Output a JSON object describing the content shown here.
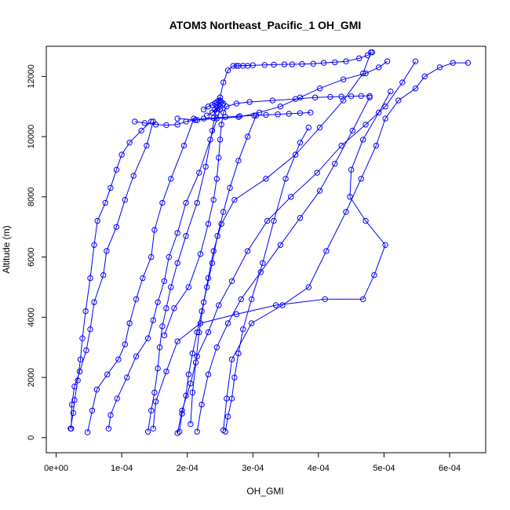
{
  "chart_data": {
    "type": "line",
    "title": "ATOM3 Northeast_Pacific_1 OH_GMI",
    "xlabel": "OH_GMI",
    "ylabel": "Altitude (m)",
    "xlim": [
      -1.5e-05,
      0.000655
    ],
    "ylim": [
      -500,
      13000
    ],
    "x_ticks": [
      0,
      0.0001,
      0.0002,
      0.0003,
      0.0004,
      0.0005,
      0.0006
    ],
    "x_tick_labels": [
      "0e+00",
      "1e-04",
      "2e-04",
      "3e-04",
      "4e-04",
      "5e-04",
      "6e-04"
    ],
    "y_ticks": [
      0,
      2000,
      4000,
      6000,
      8000,
      10000,
      12000
    ],
    "y_tick_labels": [
      "0",
      "2000",
      "4000",
      "6000",
      "8000",
      "10000",
      "12000"
    ],
    "grid": false,
    "legend": "none",
    "color": "#0000ff",
    "marker": "open-circle",
    "series": [
      {
        "x": [
          2.2e-05,
          2.6e-05,
          2.8e-05,
          3.3e-05,
          3.7e-05,
          4e-05,
          4.5e-05,
          5.2e-05,
          5.8e-05,
          6.3e-05,
          7.5e-05,
          8.3e-05,
          9.2e-05,
          0.0001,
          0.000112,
          0.00013,
          0.000145
        ],
        "y": [
          300,
          820,
          1250,
          1900,
          2600,
          3300,
          4200,
          5300,
          6400,
          7200,
          7800,
          8300,
          8900,
          9400,
          9800,
          10200,
          10500
        ]
      },
      {
        "x": [
          2.3e-05,
          2.4e-05,
          2.8e-05,
          3.6e-05,
          4.6e-05,
          5.2e-05,
          5.8e-05,
          7.2e-05,
          7.7e-05,
          9.2e-05,
          0.000105,
          0.000118,
          0.000138,
          0.000148
        ],
        "y": [
          300,
          1100,
          1700,
          2200,
          2900,
          3600,
          4500,
          5400,
          6200,
          7000,
          7900,
          8700,
          9700,
          10500
        ]
      },
      {
        "x": [
          4.8e-05,
          5.5e-05,
          6.2e-05,
          7.8e-05,
          9.5e-05,
          0.000105,
          0.000112,
          0.000122,
          0.000132,
          0.000145,
          0.00015,
          0.000162,
          0.000175,
          0.000195,
          0.00021
        ],
        "y": [
          180,
          900,
          1600,
          2100,
          2600,
          3100,
          3800,
          4600,
          5300,
          6000,
          6900,
          7800,
          8600,
          9700,
          10600
        ]
      },
      {
        "x": [
          8e-05,
          8.3e-05,
          9.3e-05,
          0.000108,
          0.000122,
          0.00014,
          0.000148,
          0.000155,
          0.000165,
          0.000172,
          0.000185,
          0.000198,
          0.000218,
          0.000235,
          0.00025
        ],
        "y": [
          300,
          750,
          1300,
          2000,
          2700,
          3300,
          3900,
          4500,
          5200,
          6000,
          6800,
          7800,
          8800,
          9900,
          10900
        ]
      },
      {
        "x": [
          0.00014,
          0.000145,
          0.00015,
          0.000155,
          0.000158,
          0.000162,
          0.000168,
          0.000175,
          0.000185,
          0.000198,
          0.000215,
          0.000228,
          0.000238,
          0.000245
        ],
        "y": [
          200,
          900,
          1500,
          2300,
          3000,
          3700,
          4300,
          5000,
          5800,
          6700,
          7800,
          9000,
          10200,
          11000
        ]
      },
      {
        "x": [
          0.000188,
          0.000192,
          0.000198,
          0.000202,
          0.000208,
          0.000215,
          0.000222,
          0.00023,
          0.000238,
          0.000246,
          0.000255,
          0.000265,
          0.000278,
          0.000292,
          0.000305
        ],
        "y": [
          200,
          800,
          1400,
          2100,
          2800,
          3500,
          4200,
          5000,
          5800,
          6700,
          7500,
          8300,
          9200,
          10000,
          10700
        ]
      },
      {
        "x": [
          0.000258,
          0.000262,
          0.000268,
          0.000272,
          0.000278,
          0.000285,
          0.000298,
          0.000315,
          0.000332,
          0.00035,
          0.000372,
          0.000385
        ],
        "y": [
          200,
          700,
          1300,
          2000,
          2800,
          3600,
          4600,
          5800,
          7200,
          8600,
          9800,
          10300
        ]
      },
      {
        "x": [
          0.000255,
          0.00026,
          0.000268,
          0.000298,
          0.000345,
          0.000385,
          0.000412,
          0.000442,
          0.000465,
          0.000488,
          0.000502,
          0.000522,
          0.000548,
          0.000562,
          0.000585,
          0.000605,
          0.000628
        ],
        "y": [
          250,
          1300,
          2600,
          3800,
          4400,
          5000,
          6200,
          7500,
          8600,
          9700,
          10600,
          11200,
          11600,
          12000,
          12300,
          12450,
          12450
        ]
      },
      {
        "x": [
          0.000148,
          0.000152,
          0.000168,
          0.000185,
          0.00022,
          0.000275,
          0.000335,
          0.00041,
          0.000468,
          0.000485,
          0.000502,
          0.000472,
          0.000448,
          0.00045,
          0.000468,
          0.000492,
          0.00051
        ],
        "y": [
          300,
          1200,
          2200,
          3200,
          3800,
          4100,
          4400,
          4600,
          4600,
          5400,
          6400,
          7200,
          8000,
          8900,
          9900,
          10800,
          11500
        ]
      },
      {
        "x": [
          0.000185,
          0.000192,
          0.000205,
          0.000215,
          0.000232,
          0.000248,
          0.000268,
          0.000292,
          0.000322,
          0.000358,
          0.000398,
          0.000435,
          0.000472,
          0.000502,
          0.000528,
          0.000548
        ],
        "y": [
          150,
          900,
          1800,
          2700,
          3500,
          4400,
          5200,
          6200,
          7200,
          8000,
          8800,
          9700,
          10400,
          11000,
          11800,
          12500
        ]
      },
      {
        "x": [
          0.000205,
          0.000208,
          0.000213,
          0.000218,
          0.000225,
          0.000232,
          0.00024,
          0.000252,
          0.000272,
          0.00032,
          0.000365,
          0.000402,
          0.000438,
          0.000468,
          0.00048
        ],
        "y": [
          450,
          1500,
          2500,
          3500,
          4500,
          5300,
          6200,
          7100,
          7900,
          8600,
          9400,
          10300,
          11200,
          12100,
          12800
        ]
      },
      {
        "x": [
          0.000215,
          0.000222,
          0.000232,
          0.000245,
          0.000262,
          0.000282,
          0.000312,
          0.000342,
          0.000372,
          0.000402,
          0.000425,
          0.000452,
          0.000478
        ],
        "y": [
          200,
          1100,
          2100,
          3000,
          3800,
          4600,
          5500,
          6400,
          7300,
          8200,
          9100,
          10200,
          11300
        ]
      },
      {
        "x": [
          0.000165,
          0.00018,
          0.000202,
          0.00022,
          0.000232,
          0.00024,
          0.000245,
          0.000248,
          0.00025,
          0.000252,
          0.000255,
          0.00026,
          0.000275,
          0.000295,
          0.00033,
          0.000365,
          0.000395,
          0.000418,
          0.000435,
          0.00045,
          0.000465,
          0.000478
        ],
        "y": [
          3400,
          4300,
          5000,
          6100,
          7100,
          7900,
          8600,
          9300,
          9900,
          10400,
          10800,
          11000,
          11100,
          11150,
          11200,
          11250,
          11300,
          11320,
          11330,
          11340,
          11350,
          11350
        ]
      },
      {
        "x": [
          0.000225,
          0.000232,
          0.000238,
          0.000242,
          0.000245,
          0.000248,
          0.00025,
          0.000252,
          0.000255
        ],
        "y": [
          10900,
          11000,
          11050,
          11100,
          11150,
          11200,
          11200,
          11150,
          11100
        ]
      },
      {
        "x": [
          0.00023,
          0.000238,
          0.000242,
          0.000246,
          0.00025,
          0.000254
        ],
        "y": [
          10700,
          10800,
          10900,
          10950,
          11000,
          11050
        ]
      },
      {
        "x": [
          0.000245,
          0.00025,
          0.000255,
          0.000262,
          0.00027,
          0.000278,
          0.000285,
          0.000292
        ],
        "y": [
          10800,
          11300,
          11800,
          12200,
          12350,
          12350,
          12350,
          12350
        ]
      },
      {
        "x": [
          0.000275,
          0.0003,
          0.000318,
          0.000332,
          0.000348,
          0.00036,
          0.000375,
          0.000392,
          0.000408,
          0.000425,
          0.000442,
          0.000462,
          0.000475,
          0.000482
        ],
        "y": [
          12350,
          12370,
          12380,
          12390,
          12400,
          12400,
          12410,
          12420,
          12450,
          12470,
          12500,
          12600,
          12700,
          12800
        ]
      },
      {
        "x": [
          0.000185,
          0.000215,
          0.000245,
          0.000278,
          0.00031,
          0.000342,
          0.000372,
          0.000402,
          0.000438,
          0.000472,
          0.000492,
          0.000505
        ],
        "y": [
          10600,
          10550,
          10600,
          10650,
          10800,
          11000,
          11300,
          11600,
          11900,
          12100,
          12300,
          12500
        ]
      },
      {
        "x": [
          0.00012,
          0.000135,
          0.000152,
          0.000168,
          0.000185,
          0.000198,
          0.000212,
          0.000225,
          0.00024,
          0.000258,
          0.00028,
          0.000302,
          0.00032,
          0.000338,
          0.000355,
          0.000372,
          0.000388
        ],
        "y": [
          10500,
          10450,
          10400,
          10380,
          10400,
          10500,
          10550,
          10600,
          10620,
          10650,
          10680,
          10700,
          10720,
          10740,
          10760,
          10780,
          10800
        ]
      }
    ]
  }
}
